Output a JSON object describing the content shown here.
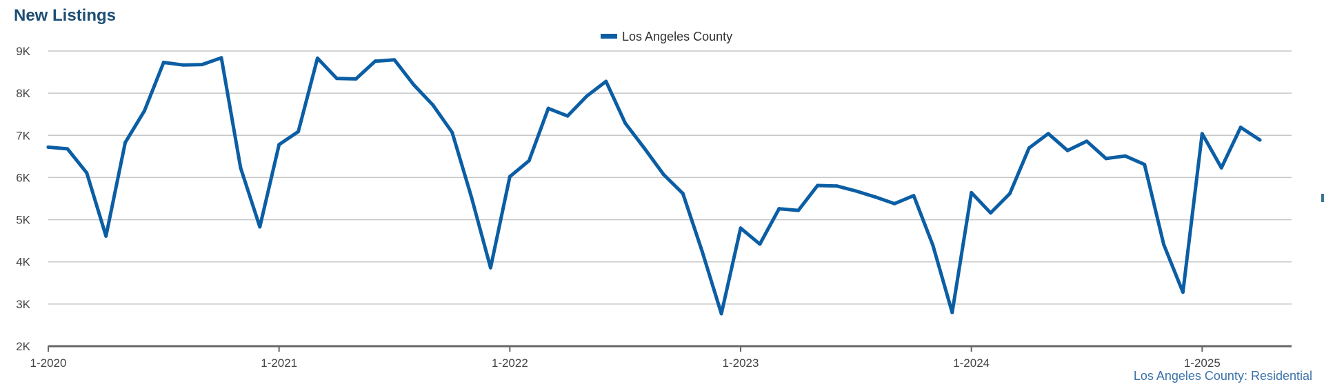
{
  "header": {
    "title": "New Listings"
  },
  "footer": {
    "label": "Los Angeles County: Residential"
  },
  "colors": {
    "series": "#0b5ea4",
    "title": "#1d4e74",
    "grid": "#c7c7c7",
    "footer": "#3c72a8"
  },
  "chart_data": {
    "type": "line",
    "title": "New Listings",
    "xlabel": "",
    "ylabel": "",
    "ylim": [
      2000,
      9000
    ],
    "y_ticks": [
      {
        "value": 2000,
        "label": "2K"
      },
      {
        "value": 3000,
        "label": "3K"
      },
      {
        "value": 4000,
        "label": "4K"
      },
      {
        "value": 5000,
        "label": "5K"
      },
      {
        "value": 6000,
        "label": "6K"
      },
      {
        "value": 7000,
        "label": "7K"
      },
      {
        "value": 8000,
        "label": "8K"
      },
      {
        "value": 9000,
        "label": "9K"
      }
    ],
    "x_ticks": [
      "1-2020",
      "1-2021",
      "1-2022",
      "1-2023",
      "1-2024",
      "1-2025"
    ],
    "grid": true,
    "legend_position": "top-center",
    "series": [
      {
        "name": "Los Angeles County",
        "x": [
          "1-2020",
          "2-2020",
          "3-2020",
          "4-2020",
          "5-2020",
          "6-2020",
          "7-2020",
          "8-2020",
          "9-2020",
          "10-2020",
          "11-2020",
          "12-2020",
          "1-2021",
          "2-2021",
          "3-2021",
          "4-2021",
          "5-2021",
          "6-2021",
          "7-2021",
          "8-2021",
          "9-2021",
          "10-2021",
          "11-2021",
          "12-2021",
          "1-2022",
          "2-2022",
          "3-2022",
          "4-2022",
          "5-2022",
          "6-2022",
          "7-2022",
          "8-2022",
          "9-2022",
          "10-2022",
          "11-2022",
          "12-2022",
          "1-2023",
          "2-2023",
          "3-2023",
          "4-2023",
          "5-2023",
          "6-2023",
          "7-2023",
          "8-2023",
          "9-2023",
          "10-2023",
          "11-2023",
          "12-2023",
          "1-2024",
          "2-2024",
          "3-2024",
          "4-2024",
          "5-2024",
          "6-2024",
          "7-2024",
          "8-2024",
          "9-2024",
          "10-2024",
          "11-2024",
          "12-2024",
          "1-2025",
          "2-2025",
          "3-2025",
          "4-2025"
        ],
        "values": [
          6720,
          6680,
          6110,
          4610,
          6830,
          7580,
          8730,
          8670,
          8680,
          8840,
          6230,
          4830,
          6780,
          7090,
          8830,
          8350,
          8340,
          8760,
          8790,
          8200,
          7720,
          7070,
          5540,
          3860,
          6020,
          6400,
          7640,
          7460,
          7930,
          8280,
          7290,
          6690,
          6070,
          5620,
          4250,
          2770,
          4800,
          4420,
          5260,
          5220,
          5810,
          5800,
          5680,
          5540,
          5380,
          5570,
          4390,
          2800,
          5640,
          5160,
          5620,
          6700,
          7040,
          6640,
          6860,
          6450,
          6510,
          6310,
          4410,
          3280,
          7040,
          6230,
          7190,
          6890
        ]
      }
    ]
  }
}
